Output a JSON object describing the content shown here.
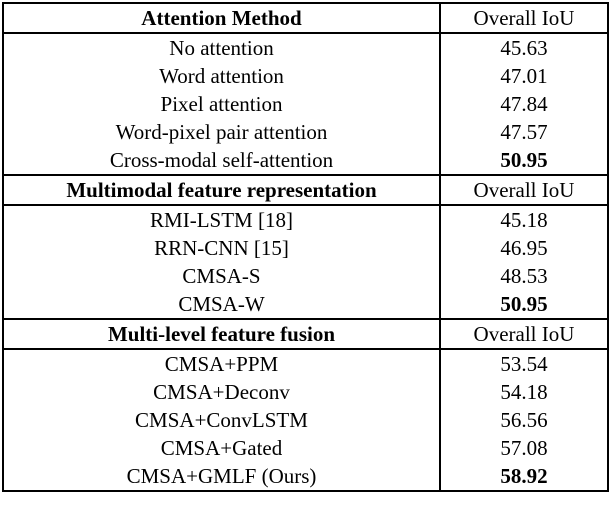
{
  "table": {
    "value_column_header": "Overall IoU",
    "sections": [
      {
        "header": {
          "label": "Attention Method",
          "value_label": "Overall IoU"
        },
        "rows": [
          {
            "method": "No attention",
            "iou": "45.63",
            "bold": false
          },
          {
            "method": "Word attention",
            "iou": "47.01",
            "bold": false
          },
          {
            "method": "Pixel attention",
            "iou": "47.84",
            "bold": false
          },
          {
            "method": "Word-pixel pair attention",
            "iou": "47.57",
            "bold": false
          },
          {
            "method": "Cross-modal self-attention",
            "iou": "50.95",
            "bold": true
          }
        ]
      },
      {
        "header": {
          "label": "Multimodal feature representation",
          "value_label": "Overall IoU"
        },
        "rows": [
          {
            "method": "RMI-LSTM [18]",
            "iou": "45.18",
            "bold": false
          },
          {
            "method": "RRN-CNN [15]",
            "iou": "46.95",
            "bold": false
          },
          {
            "method": "CMSA-S",
            "iou": "48.53",
            "bold": false
          },
          {
            "method": "CMSA-W",
            "iou": "50.95",
            "bold": true
          }
        ]
      },
      {
        "header": {
          "label": "Multi-level feature fusion",
          "value_label": "Overall IoU"
        },
        "rows": [
          {
            "method": "CMSA+PPM",
            "iou": "53.54",
            "bold": false
          },
          {
            "method": "CMSA+Deconv",
            "iou": "54.18",
            "bold": false
          },
          {
            "method": "CMSA+ConvLSTM",
            "iou": "56.56",
            "bold": false
          },
          {
            "method": "CMSA+Gated",
            "iou": "57.08",
            "bold": false
          },
          {
            "method": "CMSA+GMLF (Ours)",
            "iou": "58.92",
            "bold": true
          }
        ]
      }
    ]
  }
}
